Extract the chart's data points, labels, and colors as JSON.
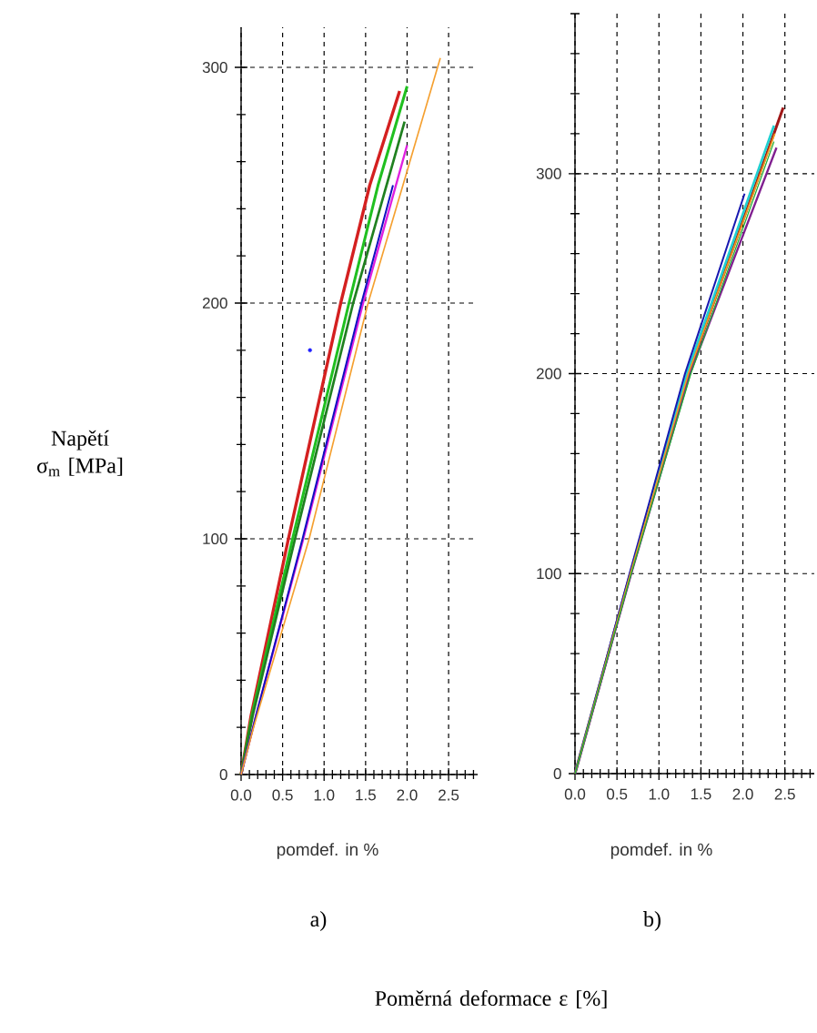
{
  "chart_data": [
    {
      "type": "line",
      "title": "a)",
      "xlabel": "pomdef. in %",
      "ylabel": "Napětí σ$_{m}$ [MPa]",
      "grid": true,
      "xlim": [
        0,
        2.85
      ],
      "ylim": [
        0,
        317
      ],
      "xticks": [
        {
          "value": 0,
          "label": "0.0"
        },
        {
          "value": 0.1,
          "label": null
        },
        {
          "value": 0.2,
          "label": null
        },
        {
          "value": 0.3,
          "label": null
        },
        {
          "value": 0.4,
          "label": null
        },
        {
          "value": 0.5,
          "label": "0.5"
        },
        {
          "value": 0.6,
          "label": null
        },
        {
          "value": 0.7,
          "label": null
        },
        {
          "value": 0.8,
          "label": null
        },
        {
          "value": 0.9,
          "label": null
        },
        {
          "value": 1,
          "label": "1.0"
        },
        {
          "value": 1.1,
          "label": null
        },
        {
          "value": 1.2,
          "label": null
        },
        {
          "value": 1.3,
          "label": null
        },
        {
          "value": 1.4,
          "label": null
        },
        {
          "value": 1.5,
          "label": "1.5"
        },
        {
          "value": 1.6,
          "label": null
        },
        {
          "value": 1.7,
          "label": null
        },
        {
          "value": 1.8,
          "label": null
        },
        {
          "value": 1.9,
          "label": null
        },
        {
          "value": 2,
          "label": "2.0"
        },
        {
          "value": 2.1,
          "label": null
        },
        {
          "value": 2.2,
          "label": null
        },
        {
          "value": 2.3,
          "label": null
        },
        {
          "value": 2.4,
          "label": null
        },
        {
          "value": 2.5,
          "label": "2.5"
        },
        {
          "value": 2.6,
          "label": null
        },
        {
          "value": 2.7,
          "label": null
        },
        {
          "value": 2.8,
          "label": null
        }
      ],
      "yticks": [
        0,
        {
          "value": 20,
          "label": null
        },
        {
          "value": 40,
          "label": null
        },
        {
          "value": 60,
          "label": null
        },
        {
          "value": 80,
          "label": null
        },
        100,
        {
          "value": 120,
          "label": null
        },
        {
          "value": 140,
          "label": null
        },
        {
          "value": 160,
          "label": null
        },
        {
          "value": 180,
          "label": null
        },
        200,
        {
          "value": 220,
          "label": null
        },
        {
          "value": 240,
          "label": null
        },
        {
          "value": 260,
          "label": null
        },
        {
          "value": 280,
          "label": null
        },
        300
      ],
      "series": [
        {
          "color": "#d42020",
          "x": [
            0,
            0.12,
            0.57,
            1.2,
            1.55,
            1.91
          ],
          "values": [
            0,
            25,
            100,
            200,
            250,
            290
          ]
        },
        {
          "color": "#20c020",
          "x": [
            0,
            0.13,
            0.62,
            1.3,
            1.65,
            2.0
          ],
          "values": [
            0,
            25,
            100,
            200,
            250,
            292
          ]
        },
        {
          "color": "#208020",
          "x": [
            0,
            0.14,
            0.65,
            1.35,
            1.97
          ],
          "values": [
            0,
            25,
            100,
            200,
            277
          ]
        },
        {
          "color": "#e020e0",
          "x": [
            0,
            0.18,
            0.75,
            1.47,
            2.0
          ],
          "values": [
            0,
            25,
            100,
            200,
            267
          ]
        },
        {
          "color": "#1010c0",
          "x": [
            0,
            0.18,
            0.74,
            1.45,
            1.83
          ],
          "values": [
            0,
            25,
            100,
            200,
            250
          ]
        },
        {
          "color": "#f5a030",
          "x": [
            0,
            0.15,
            0.82,
            1.53,
            1.95,
            2.4
          ],
          "values": [
            0,
            20,
            100,
            200,
            250,
            304
          ]
        },
        {
          "type": "scatter",
          "color": "#2020ff",
          "x": [
            0.83
          ],
          "values": [
            180
          ]
        }
      ]
    },
    {
      "type": "line",
      "title": "b)",
      "xlabel": "pomdef. in %",
      "grid": true,
      "annotations": [
        "Poměrná deformace ε [%]"
      ],
      "xlim": [
        0,
        2.85
      ],
      "ylim": [
        0,
        380
      ],
      "xticks": [
        {
          "value": 0,
          "label": "0.0"
        },
        {
          "value": 0.1,
          "label": null
        },
        {
          "value": 0.2,
          "label": null
        },
        {
          "value": 0.3,
          "label": null
        },
        {
          "value": 0.4,
          "label": null
        },
        {
          "value": 0.5,
          "label": "0.5"
        },
        {
          "value": 0.6,
          "label": null
        },
        {
          "value": 0.7,
          "label": null
        },
        {
          "value": 0.8,
          "label": null
        },
        {
          "value": 0.9,
          "label": null
        },
        {
          "value": 1,
          "label": "1.0"
        },
        {
          "value": 1.1,
          "label": null
        },
        {
          "value": 1.2,
          "label": null
        },
        {
          "value": 1.3,
          "label": null
        },
        {
          "value": 1.4,
          "label": null
        },
        {
          "value": 1.5,
          "label": "1.5"
        },
        {
          "value": 1.6,
          "label": null
        },
        {
          "value": 1.7,
          "label": null
        },
        {
          "value": 1.8,
          "label": null
        },
        {
          "value": 1.9,
          "label": null
        },
        {
          "value": 2,
          "label": "2.0"
        },
        {
          "value": 2.1,
          "label": null
        },
        {
          "value": 2.2,
          "label": null
        },
        {
          "value": 2.3,
          "label": null
        },
        {
          "value": 2.4,
          "label": null
        },
        {
          "value": 2.5,
          "label": "2.5"
        },
        {
          "value": 2.6,
          "label": null
        },
        {
          "value": 2.7,
          "label": null
        },
        {
          "value": 2.8,
          "label": null
        }
      ],
      "yticks": [
        0,
        {
          "value": 20,
          "label": null
        },
        {
          "value": 40,
          "label": null
        },
        {
          "value": 60,
          "label": null
        },
        {
          "value": 80,
          "label": null
        },
        100,
        {
          "value": 120,
          "label": null
        },
        {
          "value": 140,
          "label": null
        },
        {
          "value": 160,
          "label": null
        },
        {
          "value": 180,
          "label": null
        },
        200,
        {
          "value": 220,
          "label": null
        },
        {
          "value": 240,
          "label": null
        },
        {
          "value": 260,
          "label": null
        },
        {
          "value": 280,
          "label": null
        },
        300,
        {
          "value": 320,
          "label": null
        },
        {
          "value": 340,
          "label": null
        },
        {
          "value": 360,
          "label": null
        },
        {
          "value": 380,
          "label": null
        }
      ],
      "series": [
        {
          "color": "#a01818",
          "x": [
            0,
            0.66,
            1.35,
            2.48
          ],
          "values": [
            0,
            100,
            200,
            333
          ]
        },
        {
          "color": "#20d0d0",
          "x": [
            0,
            0.66,
            1.33,
            2.37
          ],
          "values": [
            0,
            100,
            200,
            324
          ]
        },
        {
          "color": "#802090",
          "x": [
            0,
            0.67,
            1.37,
            2.4
          ],
          "values": [
            0,
            100,
            200,
            313
          ]
        },
        {
          "color": "#1818b0",
          "x": [
            0,
            0.65,
            1.31,
            2.02
          ],
          "values": [
            0,
            100,
            200,
            290
          ]
        },
        {
          "color": "#f0a020",
          "x": [
            0,
            0.66,
            1.35,
            2.38
          ],
          "values": [
            0,
            100,
            200,
            320
          ]
        },
        {
          "color": "#20b030",
          "x": [
            0,
            0.67,
            1.38,
            2.37
          ],
          "values": [
            0,
            100,
            200,
            316
          ]
        }
      ]
    }
  ]
}
